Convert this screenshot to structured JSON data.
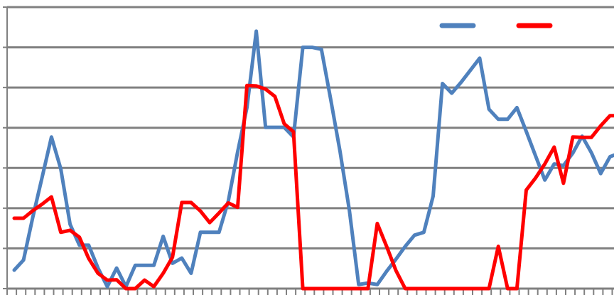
{
  "chart_data": {
    "type": "line",
    "title": "",
    "xlabel": "",
    "ylabel": "",
    "ylim": [
      0,
      7
    ],
    "grid": true,
    "legend_placement": "top-right",
    "x": [
      1,
      2,
      3,
      4,
      5,
      6,
      7,
      8,
      9,
      10,
      11,
      12,
      13,
      14,
      15,
      16,
      17,
      18,
      19,
      20,
      21,
      22,
      23,
      24,
      25,
      26,
      27,
      28,
      29,
      30,
      31,
      32,
      33,
      34,
      35,
      36,
      37,
      38,
      39,
      40,
      41,
      42,
      43,
      44,
      45,
      46,
      47,
      48,
      49,
      50,
      51,
      52,
      53,
      54,
      55,
      56,
      57,
      58,
      59,
      60,
      61,
      62,
      63,
      64,
      65,
      66
    ],
    "series": [
      {
        "color": "#4f81bd",
        "values": [
          0.46,
          0.71,
          1.78,
          2.77,
          3.77,
          2.98,
          1.6,
          1.08,
          1.08,
          0.51,
          0.05,
          0.51,
          0.05,
          0.58,
          0.58,
          0.58,
          1.3,
          0.63,
          0.76,
          0.38,
          1.4,
          1.4,
          1.4,
          2.18,
          3.4,
          4.5,
          6.4,
          4.01,
          4.01,
          4.01,
          3.77,
          6.0,
          6.0,
          5.95,
          4.7,
          3.41,
          1.95,
          0.1,
          0.14,
          0.1,
          0.43,
          0.73,
          1.05,
          1.33,
          1.4,
          2.3,
          5.1,
          4.86,
          5.13,
          5.43,
          5.73,
          4.46,
          4.21,
          4.21,
          4.5,
          3.91,
          3.3,
          2.7,
          3.1,
          3.06,
          3.37,
          3.79,
          3.38,
          2.86,
          3.28,
          3.37
        ]
      },
      {
        "color": "#ff0000",
        "values": [
          1.75,
          1.75,
          1.94,
          2.1,
          2.28,
          1.4,
          1.45,
          1.28,
          0.75,
          0.38,
          0.21,
          0.22,
          0,
          0,
          0.21,
          0.05,
          0.38,
          0.78,
          2.14,
          2.14,
          1.93,
          1.64,
          1.88,
          2.13,
          2.02,
          5.05,
          5.04,
          4.96,
          4.78,
          4.1,
          3.9,
          0,
          0,
          0,
          0,
          0,
          0,
          0,
          0,
          1.62,
          1.05,
          0.45,
          0,
          0,
          0,
          0,
          0,
          0,
          0,
          0,
          0,
          0,
          1.05,
          0,
          0,
          2.45,
          2.75,
          3.1,
          3.52,
          2.62,
          3.77,
          3.76,
          3.76,
          4.05,
          4.3,
          4.3
        ]
      }
    ]
  }
}
